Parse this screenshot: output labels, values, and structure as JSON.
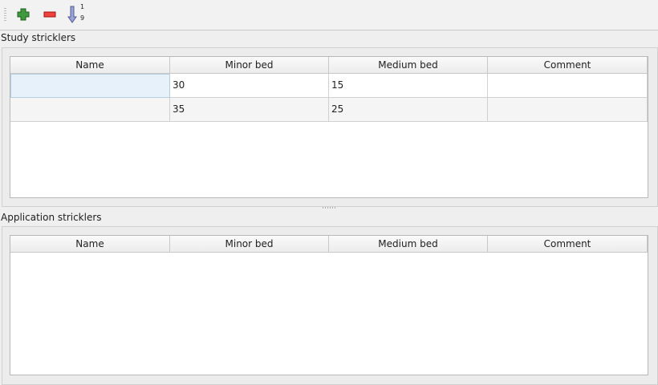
{
  "toolbar": {
    "add": "add-icon",
    "remove": "remove-icon",
    "sort": "sort-ascending-icon",
    "sort_top": "1",
    "sort_bottom": "9"
  },
  "study": {
    "title": "Study stricklers",
    "columns": [
      "Name",
      "Minor bed",
      "Medium bed",
      "Comment"
    ],
    "rows": [
      [
        "",
        "30",
        "15",
        ""
      ],
      [
        "",
        "35",
        "25",
        ""
      ]
    ]
  },
  "application": {
    "title": "Application stricklers",
    "columns": [
      "Name",
      "Minor bed",
      "Medium bed",
      "Comment"
    ],
    "rows": []
  }
}
